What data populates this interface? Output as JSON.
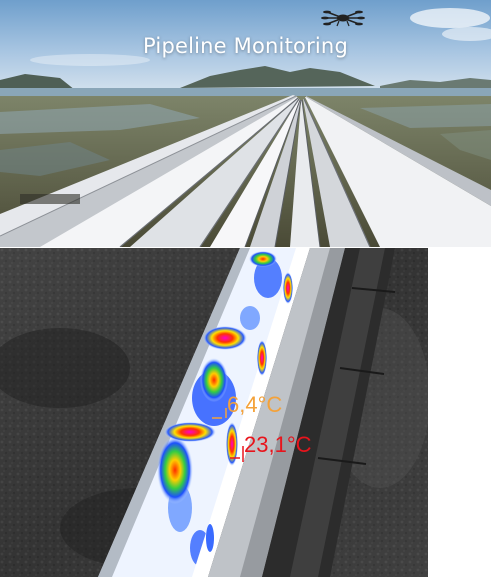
{
  "header": {
    "title": "Pipeline Monitoring"
  },
  "icons": {
    "drone": "drone-icon"
  },
  "thermal": {
    "readings": [
      {
        "label": "6,4°C",
        "color": "#f4a23a"
      },
      {
        "label": "23,1°C",
        "color": "#e8141c"
      }
    ]
  }
}
